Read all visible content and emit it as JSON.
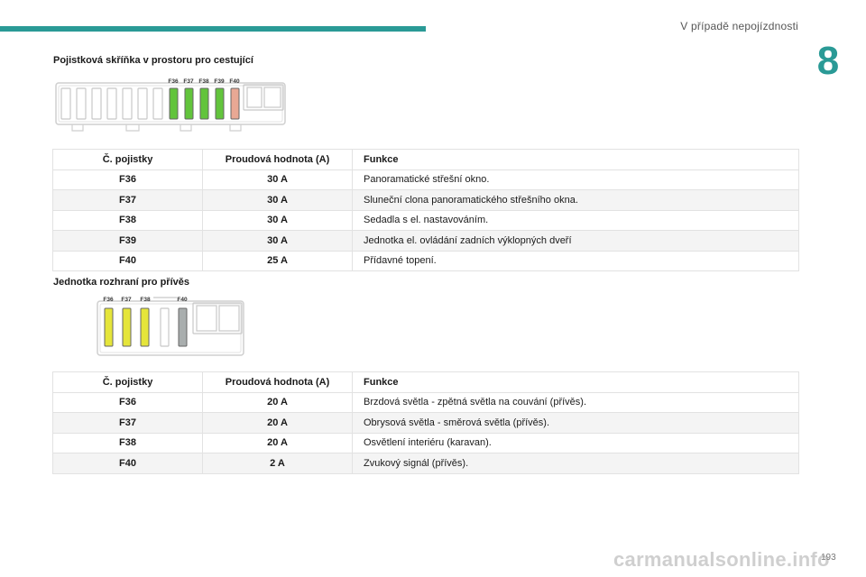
{
  "header": {
    "title": "V případě nepojízdnosti",
    "chapter": "8",
    "accent": "#2a9a96"
  },
  "section1": {
    "title": "Pojistková skříňka v prostoru pro cestující",
    "diagram_labels": [
      "F36",
      "F37",
      "F38",
      "F39",
      "F40"
    ],
    "fuse_colors": [
      "#62c43c",
      "#62c43c",
      "#62c43c",
      "#62c43c",
      "#e8a894"
    ],
    "table": {
      "headers": [
        "Č. pojistky",
        "Proudová hodnota (A)",
        "Funkce"
      ],
      "rows": [
        [
          "F36",
          "30 A",
          "Panoramatické střešní okno."
        ],
        [
          "F37",
          "30 A",
          "Sluneční clona panoramatického střešního okna."
        ],
        [
          "F38",
          "30 A",
          "Sedadla s el. nastavováním."
        ],
        [
          "F39",
          "30 A",
          "Jednotka el. ovládání zadních výklopných dveří"
        ],
        [
          "F40",
          "25 A",
          "Přídavné topení."
        ]
      ]
    }
  },
  "section2": {
    "title": "Jednotka rozhraní pro přívěs",
    "diagram_labels": [
      "F36",
      "F37",
      "F38",
      "F40"
    ],
    "fuse_colors": [
      "#e5e53a",
      "#e5e53a",
      "#e5e53a",
      "#a9aeae"
    ],
    "table": {
      "headers": [
        "Č. pojistky",
        "Proudová hodnota (A)",
        "Funkce"
      ],
      "rows": [
        [
          "F36",
          "20 A",
          "Brzdová světla - zpětná světla na couvání (přívěs)."
        ],
        [
          "F37",
          "20 A",
          "Obrysová světla - směrová světla (přívěs)."
        ],
        [
          "F38",
          "20 A",
          "Osvětlení interiéru (karavan)."
        ],
        [
          "F40",
          "2 A",
          "Zvukový signál (přívěs)."
        ]
      ]
    }
  },
  "footer": {
    "page_number": "193",
    "watermark": "carmanualsonline.info"
  }
}
